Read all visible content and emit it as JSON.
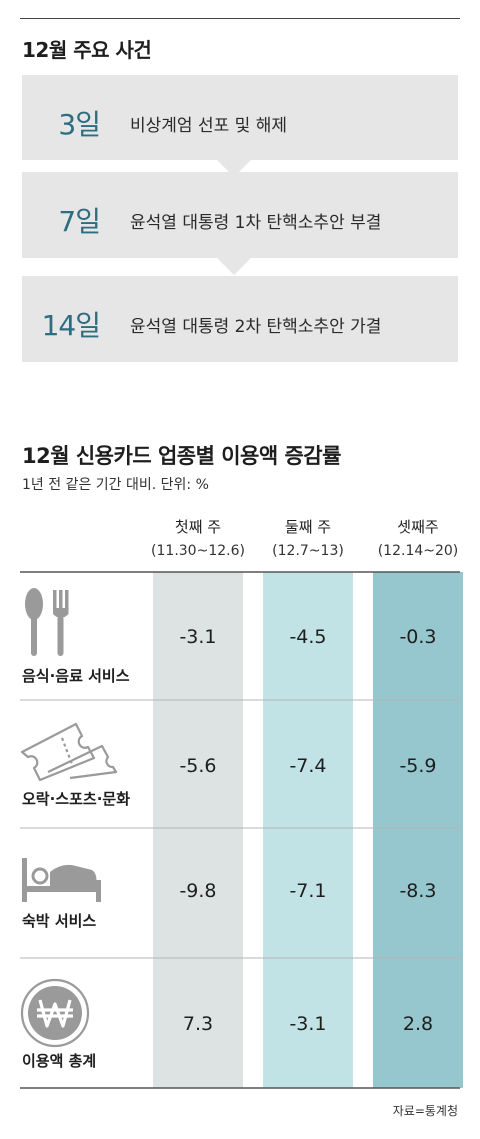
{
  "section1": {
    "title": "12월 주요 사건",
    "events": [
      {
        "day": "3일",
        "text": "비상계엄 선포 및 해제"
      },
      {
        "day": "7일",
        "text": "윤석열 대통령 1차 탄핵소추안 부결"
      },
      {
        "day": "14일",
        "text": "윤석열 대통령 2차 탄핵소추안 가결"
      }
    ]
  },
  "section2": {
    "title": "12월 신용카드 업종별 이용액 증감률",
    "subtitle": "1년 전 같은 기간 대비. 단위: %",
    "source": "자료=통계청"
  },
  "chart_data": {
    "type": "table",
    "columns": [
      {
        "name": "첫째 주",
        "period": "(11.30~12.6)"
      },
      {
        "name": "둘째 주",
        "period": "(12.7~13)"
      },
      {
        "name": "셋째주",
        "period": "(12.14~20)"
      }
    ],
    "rows": [
      {
        "label": "음식·음료 서비스",
        "icon": "fork-spoon-icon",
        "values": [
          "-3.1",
          "-4.5",
          "-0.3"
        ]
      },
      {
        "label": "오락·스포츠·문화",
        "icon": "ticket-icon",
        "values": [
          "-5.6",
          "-7.4",
          "-5.9"
        ]
      },
      {
        "label": "숙박 서비스",
        "icon": "bed-icon",
        "values": [
          "-9.8",
          "-7.1",
          "-8.3"
        ]
      },
      {
        "label": "이용액 총계",
        "icon": "won-coin-icon",
        "values": [
          "7.3",
          "-3.1",
          "2.8"
        ]
      }
    ],
    "colors": {
      "col1": "#dde2e3",
      "col2": "#c2e3e6",
      "col3": "#96c7cf",
      "event_box": "#e6e6e6",
      "accent": "#2d6d80"
    }
  }
}
